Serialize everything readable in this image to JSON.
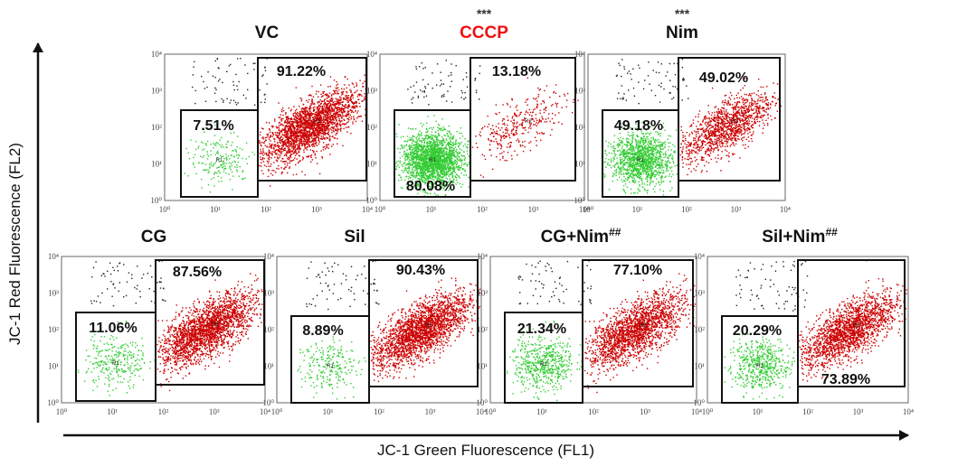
{
  "axes": {
    "x_label": "JC-1 Green Fluorescence (FL1)",
    "y_label": "JC-1 Red Fluorescence (FL2)"
  },
  "colors": {
    "green": "#33cc33",
    "red": "#cc0000",
    "black": "#222222",
    "cccp_title": "#ee1111"
  },
  "chart_data": [
    {
      "type": "scatter",
      "title": "VC",
      "title_color": "#111111",
      "significance": "",
      "xlim": [
        1,
        10000
      ],
      "ylim": [
        1,
        10000
      ],
      "x_scale": "log",
      "y_scale": "log",
      "ticks": [
        "10⁰",
        "10¹",
        "10²",
        "10³",
        "10⁴"
      ],
      "gates": [
        {
          "name": "R1",
          "label": "7.51%",
          "color": "green"
        },
        {
          "name": "R2",
          "label": "91.22%",
          "color": "red"
        }
      ]
    },
    {
      "type": "scatter",
      "title": "CCCP",
      "title_color": "#ee1111",
      "significance": "***",
      "xlim": [
        1,
        10000
      ],
      "ylim": [
        1,
        10000
      ],
      "x_scale": "log",
      "y_scale": "log",
      "ticks": [
        "10⁰",
        "10¹",
        "10²",
        "10³",
        "10⁴"
      ],
      "gates": [
        {
          "name": "R1",
          "label": "80.08%",
          "color": "green"
        },
        {
          "name": "R2",
          "label": "13.18%",
          "color": "red"
        }
      ]
    },
    {
      "type": "scatter",
      "title": "Nim",
      "title_color": "#111111",
      "significance": "***",
      "xlim": [
        1,
        10000
      ],
      "ylim": [
        1,
        10000
      ],
      "x_scale": "log",
      "y_scale": "log",
      "ticks": [
        "10⁰",
        "10¹",
        "10²",
        "10³",
        "10⁴"
      ],
      "gates": [
        {
          "name": "R1",
          "label": "49.18%",
          "color": "green"
        },
        {
          "name": "R2",
          "label": "49.02%",
          "color": "red"
        }
      ]
    },
    {
      "type": "scatter",
      "title": "CG",
      "title_color": "#111111",
      "significance": "",
      "xlim": [
        1,
        10000
      ],
      "ylim": [
        1,
        10000
      ],
      "x_scale": "log",
      "y_scale": "log",
      "ticks": [
        "10⁰",
        "10¹",
        "10²",
        "10³",
        "10⁴"
      ],
      "gates": [
        {
          "name": "R1",
          "label": "11.06%",
          "color": "green"
        },
        {
          "name": "R2",
          "label": "87.56%",
          "color": "red"
        }
      ]
    },
    {
      "type": "scatter",
      "title": "Sil",
      "title_color": "#111111",
      "significance": "",
      "xlim": [
        1,
        10000
      ],
      "ylim": [
        1,
        10000
      ],
      "x_scale": "log",
      "y_scale": "log",
      "ticks": [
        "10⁰",
        "10¹",
        "10²",
        "10³",
        "10⁴"
      ],
      "gates": [
        {
          "name": "R1",
          "label": "8.89%",
          "color": "green"
        },
        {
          "name": "R2",
          "label": "90.43%",
          "color": "red"
        }
      ]
    },
    {
      "type": "scatter",
      "title": "CG+Nim",
      "title_sup": "##",
      "title_color": "#111111",
      "significance": "",
      "xlim": [
        1,
        10000
      ],
      "ylim": [
        1,
        10000
      ],
      "x_scale": "log",
      "y_scale": "log",
      "ticks": [
        "10⁰",
        "10¹",
        "10²",
        "10³",
        "10⁴"
      ],
      "gates": [
        {
          "name": "R1",
          "label": "21.34%",
          "color": "green"
        },
        {
          "name": "R2",
          "label": "77.10%",
          "color": "red"
        }
      ]
    },
    {
      "type": "scatter",
      "title": "Sil+Nim",
      "title_sup": "##",
      "title_color": "#111111",
      "significance": "",
      "xlim": [
        1,
        10000
      ],
      "ylim": [
        1,
        10000
      ],
      "x_scale": "log",
      "y_scale": "log",
      "ticks": [
        "10⁰",
        "10¹",
        "10²",
        "10³",
        "10⁴"
      ],
      "gates": [
        {
          "name": "R1",
          "label": "20.29%",
          "color": "green"
        },
        {
          "name": "R2",
          "label": "73.89%",
          "color": "red"
        }
      ]
    }
  ]
}
